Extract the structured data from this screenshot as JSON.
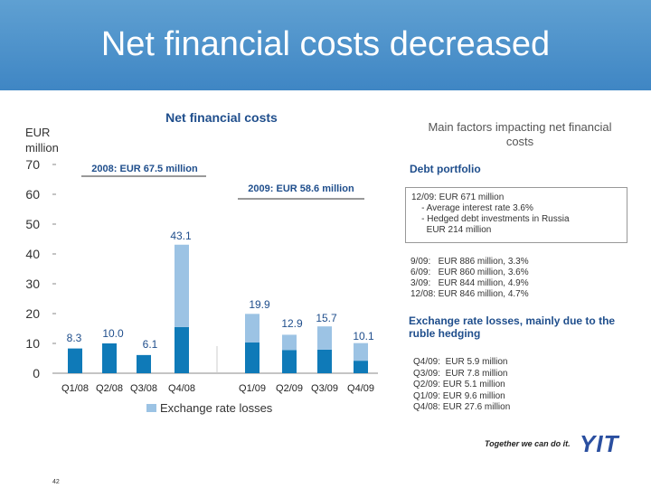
{
  "header": {
    "title": "Net financial costs decreased"
  },
  "chart_data": {
    "type": "bar",
    "title": "Net financial costs",
    "ylabel": "EUR million",
    "ylim": [
      0,
      70
    ],
    "yticks": [
      "0",
      "10",
      "20",
      "30",
      "40",
      "50",
      "60",
      "70"
    ],
    "categories": [
      "Q1/08",
      "Q2/08",
      "Q3/08",
      "Q4/08",
      "Q1/09",
      "Q2/09",
      "Q3/09",
      "Q4/09"
    ],
    "totals": [
      8.3,
      10.0,
      6.1,
      43.1,
      19.9,
      12.9,
      15.7,
      10.1
    ],
    "total_labels": [
      "8.3",
      "10.0",
      "6.1",
      "43.1",
      "19.9",
      "12.9",
      "15.7",
      "10.1"
    ],
    "series": [
      {
        "name": "Exchange rate losses",
        "values": [
          0,
          0,
          0,
          27.6,
          9.6,
          5.1,
          7.8,
          5.9
        ],
        "color": "#9cc3e4"
      },
      {
        "name": "",
        "values": [
          8.3,
          10.0,
          6.1,
          15.5,
          10.3,
          7.8,
          7.9,
          4.2
        ],
        "color": "#0f7ab8"
      }
    ],
    "annotations": [
      "2008: EUR 67.5 million",
      "2009: EUR 58.6 million"
    ],
    "legend_position": "bottom"
  },
  "right_panel": {
    "heading": "Main factors impacting net financial costs",
    "debt_title": "Debt portfolio",
    "debt_box": [
      "12/09: EUR 671 million",
      "    - Average interest rate 3.6%",
      "    - Hedged debt investments in Russia",
      "      EUR 214 million"
    ],
    "debt_history": [
      "9/09:   EUR 886 million, 3.3%",
      "6/09:   EUR 860 million, 3.6%",
      "3/09:   EUR 844 million, 4.9%",
      "12/08: EUR 846 million, 4.7%"
    ],
    "exchange_title": "Exchange rate losses, mainly due to the ruble hedging",
    "exchange_history": [
      "Q4/09:  EUR 5.9 million",
      "Q3/09:  EUR 7.8 million",
      "Q2/09: EUR 5.1 million",
      "Q1/09: EUR 9.6 million",
      "Q4/08: EUR 27.6 million"
    ]
  },
  "footer": {
    "slogan": "Together we can do it.",
    "logo": "YIT",
    "page_number": "42"
  }
}
